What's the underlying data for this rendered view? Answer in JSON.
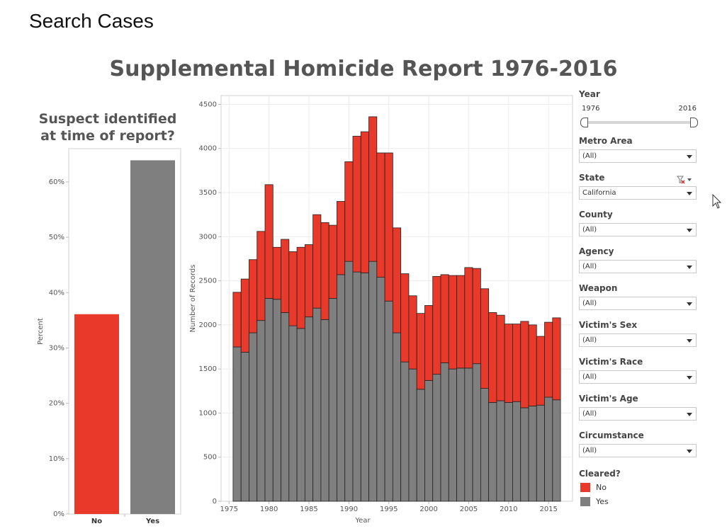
{
  "page": {
    "title": "Search Cases"
  },
  "dashboard": {
    "title": "Supplemental Homicide Report 1976-2016"
  },
  "colors": {
    "no": "#e8392a",
    "yes": "#7f7f7f",
    "grid": "#ececec",
    "axis": "#d0d0d0",
    "bar_outline": "#222222"
  },
  "filters": {
    "year": {
      "label": "Year",
      "min": "1976",
      "max": "2016"
    },
    "dropdowns": [
      {
        "label": "Metro Area",
        "value": "(All)"
      },
      {
        "label": "State",
        "value": "California"
      },
      {
        "label": "County",
        "value": "(All)"
      },
      {
        "label": "Agency",
        "value": "(All)"
      },
      {
        "label": "Weapon",
        "value": "(All)"
      },
      {
        "label": "Victim's Sex",
        "value": "(All)"
      },
      {
        "label": "Victim's Race",
        "value": "(All)"
      },
      {
        "label": "Victim's Age",
        "value": "(All)"
      },
      {
        "label": "Circumstance",
        "value": "(All)"
      }
    ],
    "legend": {
      "title": "Cleared?",
      "items": [
        {
          "label": "No"
        },
        {
          "label": "Yes"
        }
      ]
    }
  },
  "chart_data": [
    {
      "type": "bar",
      "title": "Suspect identified\nat time of report?",
      "title_lines": [
        "Suspect identified",
        "at time of report?"
      ],
      "ylabel": "Percent",
      "xlabel": "",
      "categories": [
        "No",
        "Yes"
      ],
      "values": [
        36.1,
        63.9
      ],
      "yticks": [
        0,
        10,
        20,
        30,
        40,
        50,
        60
      ],
      "ytick_labels": [
        "0%",
        "10%",
        "20%",
        "30%",
        "40%",
        "50%",
        "60%"
      ],
      "ylim": [
        0,
        66
      ],
      "grid": false
    },
    {
      "type": "bar",
      "stacked": true,
      "xlabel": "Year",
      "ylabel": "Number of Records",
      "xticks": [
        1975,
        1980,
        1985,
        1990,
        1995,
        2000,
        2005,
        2010,
        2015
      ],
      "xlim": [
        1974,
        2018
      ],
      "yticks": [
        0,
        500,
        1000,
        1500,
        2000,
        2500,
        3000,
        3500,
        4000,
        4500
      ],
      "ylim": [
        0,
        4600
      ],
      "grid": true,
      "x": [
        1976,
        1977,
        1978,
        1979,
        1980,
        1981,
        1982,
        1983,
        1984,
        1985,
        1986,
        1987,
        1988,
        1989,
        1990,
        1991,
        1992,
        1993,
        1994,
        1995,
        1996,
        1997,
        1998,
        1999,
        2000,
        2001,
        2002,
        2003,
        2004,
        2005,
        2006,
        2007,
        2008,
        2009,
        2010,
        2011,
        2012,
        2013,
        2014,
        2015,
        2016
      ],
      "series": [
        {
          "name": "Yes",
          "values": [
            1750,
            1690,
            1910,
            2050,
            2300,
            2290,
            2140,
            1990,
            1960,
            2090,
            2190,
            2060,
            2300,
            2570,
            2720,
            2600,
            2590,
            2720,
            2540,
            2270,
            1910,
            1580,
            1500,
            1270,
            1370,
            1440,
            1570,
            1500,
            1510,
            1510,
            1560,
            1280,
            1120,
            1140,
            1120,
            1130,
            1060,
            1080,
            1090,
            1180,
            1150
          ]
        },
        {
          "name": "No",
          "values": [
            620,
            830,
            830,
            1010,
            1290,
            590,
            830,
            840,
            920,
            820,
            1060,
            1100,
            830,
            830,
            1130,
            1540,
            1600,
            1640,
            1410,
            1680,
            1190,
            1000,
            830,
            860,
            850,
            1110,
            1000,
            1060,
            1050,
            1140,
            1080,
            1130,
            1020,
            970,
            890,
            880,
            980,
            920,
            780,
            850,
            930
          ]
        }
      ]
    }
  ]
}
